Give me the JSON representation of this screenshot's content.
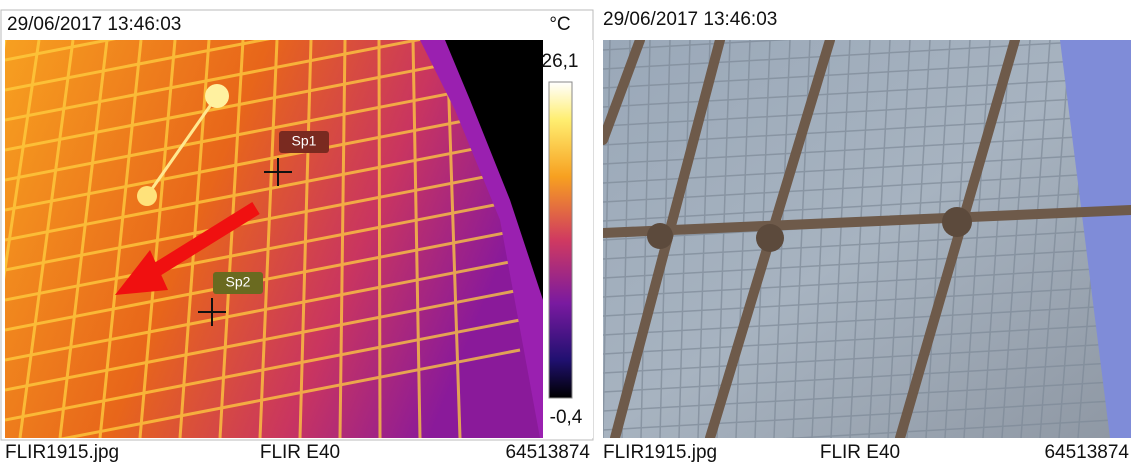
{
  "thermal": {
    "timestamp": "29/06/2017 13:46:03",
    "unit": "°C",
    "scale_max": "26,1",
    "scale_min": "-0,4",
    "spots": [
      "Sp1",
      "Sp2"
    ],
    "footer": {
      "file": "FLIR1915.jpg",
      "camera": "FLIR E40",
      "serial": "64513874"
    }
  },
  "visual": {
    "timestamp": "29/06/2017 13:46:03",
    "footer": {
      "file": "FLIR1915.jpg",
      "camera": "FLIR E40",
      "serial": "64513874"
    }
  }
}
